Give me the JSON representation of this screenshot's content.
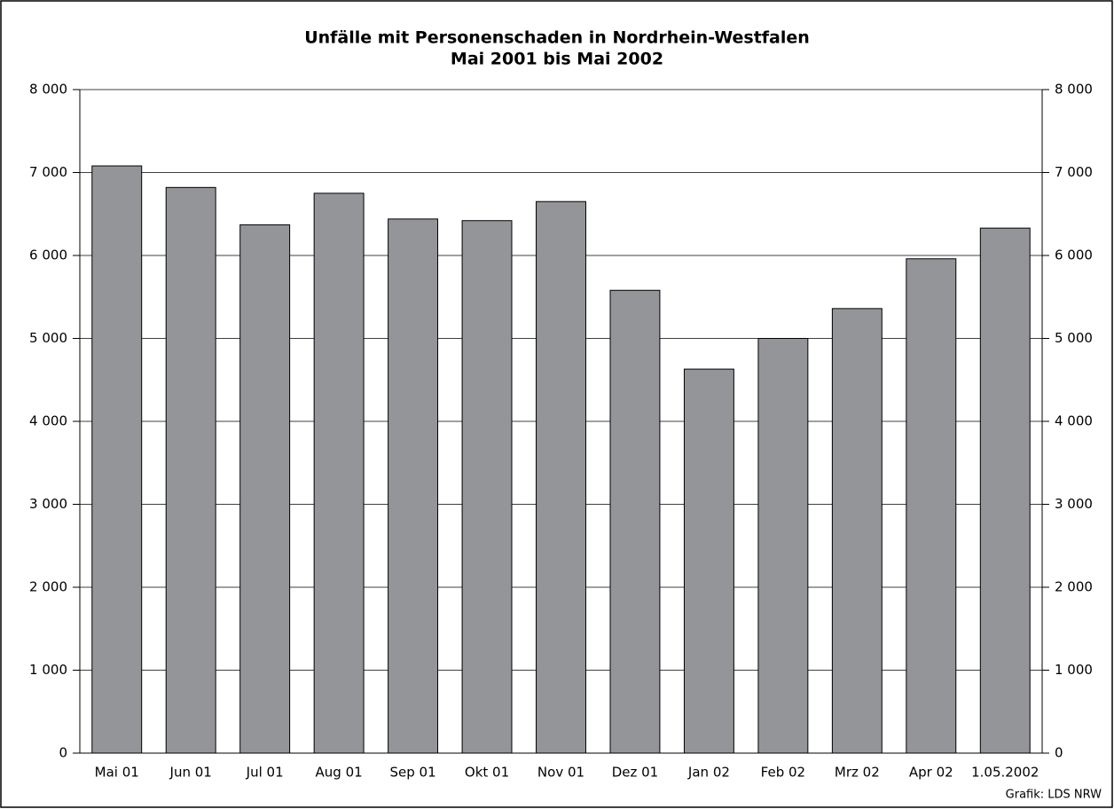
{
  "chart_data": {
    "type": "bar",
    "title": "Unfälle mit Personenschaden in Nordrhein-Westfalen",
    "subtitle": "Mai 2001 bis Mai 2002",
    "source": "Grafik: LDS NRW",
    "categories": [
      "Mai 01",
      "Jun 01",
      "Jul 01",
      "Aug 01",
      "Sep 01",
      "Okt 01",
      "Nov 01",
      "Dez 01",
      "Jan 02",
      "Feb 02",
      "Mrz 02",
      "Apr 02",
      "1.05.2002"
    ],
    "values": [
      7080,
      6820,
      6370,
      6750,
      6440,
      6420,
      6650,
      5580,
      4630,
      5000,
      5360,
      5960,
      6330
    ],
    "color": "#949599",
    "ylim": [
      0,
      8000
    ],
    "yticks": [
      0,
      {
        "value": 1000,
        "label": "1 000"
      },
      {
        "value": 2000,
        "label": "2 000"
      },
      {
        "value": 3000,
        "label": "3 000"
      },
      {
        "value": 4000,
        "label": "4 000"
      },
      {
        "value": 5000,
        "label": "5 000"
      },
      {
        "value": 6000,
        "label": "6 000"
      },
      {
        "value": 7000,
        "label": "7 000"
      },
      {
        "value": 8000,
        "label": "8 000"
      }
    ],
    "y2lim": [
      0,
      8000
    ],
    "y2ticks": [
      0,
      {
        "value": 1000,
        "label": "1 000"
      },
      {
        "value": 2000,
        "label": "2 000"
      },
      {
        "value": 3000,
        "label": "3 000"
      },
      {
        "value": 4000,
        "label": "4 000"
      },
      {
        "value": 5000,
        "label": "5 000"
      },
      {
        "value": 6000,
        "label": "6 000"
      },
      {
        "value": 7000,
        "label": "7 000"
      },
      {
        "value": 8000,
        "label": "8 000"
      }
    ],
    "grid": true
  }
}
